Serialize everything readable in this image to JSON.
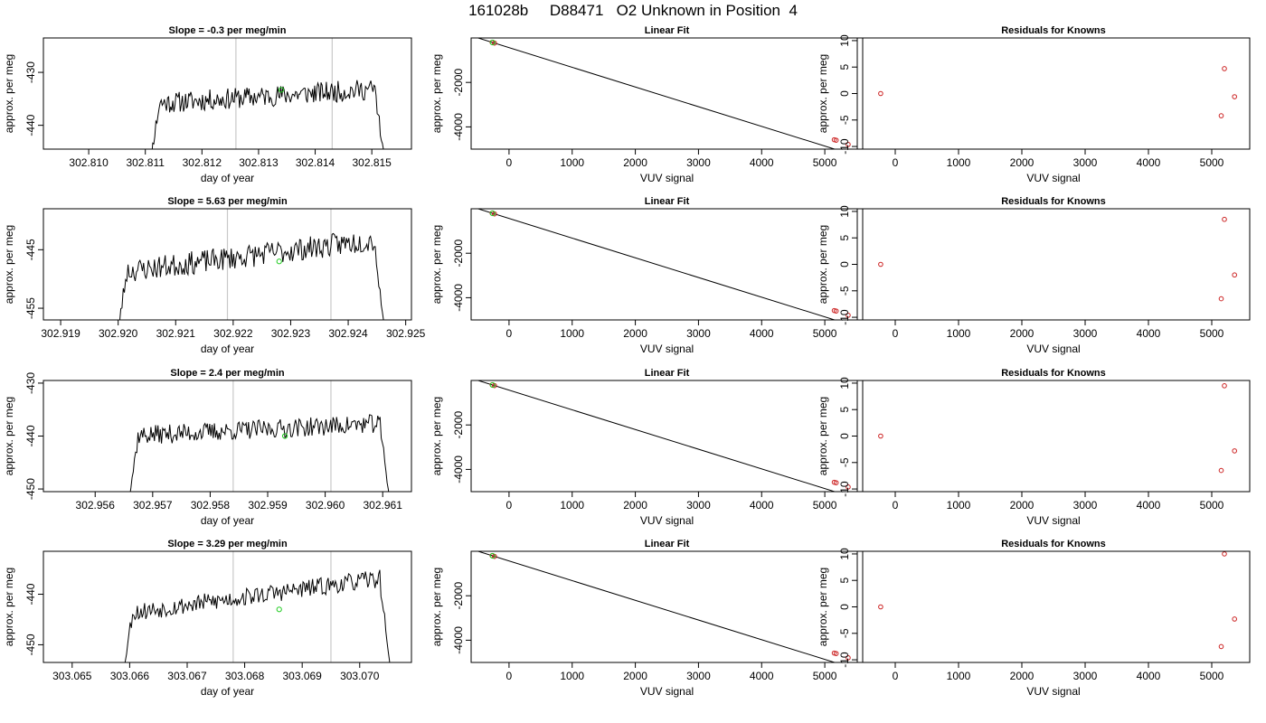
{
  "title": "161028b     D88471   O2 Unknown in Position  4",
  "chart_data": [
    {
      "type": "line",
      "panel": "timeseries",
      "row": 0,
      "title": "Slope =  -0.3  per meg/min",
      "xlabel": "day of year",
      "ylabel": "approx. per meg",
      "xlim": [
        302.8092,
        302.8157
      ],
      "ylim": [
        -444.5,
        -423.5
      ],
      "xticks": [
        302.81,
        302.811,
        302.812,
        302.813,
        302.814,
        302.815
      ],
      "xtick_labels": [
        "302.810",
        "302.811",
        "302.812",
        "302.813",
        "302.814",
        "302.815"
      ],
      "yticks": [
        -440,
        -430
      ],
      "ytick_labels": [
        "-440",
        "-430"
      ],
      "vlines": [
        302.8126,
        302.8143
      ],
      "series": [
        {
          "x_start": 302.811,
          "x_end": 302.8153,
          "level_start": -436.0,
          "level_end": -433.0,
          "noise": 2.0,
          "n": 230,
          "seed": 11
        }
      ],
      "marker": {
        "x": 302.8134,
        "y": -433.3
      }
    },
    {
      "type": "line",
      "panel": "timeseries",
      "row": 1,
      "title": "Slope =  5.63  per meg/min",
      "xlabel": "day of year",
      "ylabel": "approx. per meg",
      "xlim": [
        302.9187,
        302.9251
      ],
      "ylim": [
        -457.0,
        -438.0
      ],
      "xticks": [
        302.919,
        302.92,
        302.921,
        302.922,
        302.923,
        302.924,
        302.925
      ],
      "xtick_labels": [
        "302.919",
        "302.920",
        "302.921",
        "302.922",
        "302.923",
        "302.924",
        "302.925"
      ],
      "yticks": [
        -455,
        -445
      ],
      "ytick_labels": [
        "-455",
        "-445"
      ],
      "vlines": [
        302.9219,
        302.9237
      ],
      "series": [
        {
          "x_start": 302.9199,
          "x_end": 302.9247,
          "level_start": -449.0,
          "level_end": -443.0,
          "noise": 2.0,
          "n": 230,
          "seed": 23
        }
      ],
      "marker": {
        "x": 302.9228,
        "y": -447.0
      }
    },
    {
      "type": "line",
      "panel": "timeseries",
      "row": 2,
      "title": "Slope =  2.4  per meg/min",
      "xlabel": "day of year",
      "ylabel": "approx. per meg",
      "xlim": [
        302.9551,
        302.9615
      ],
      "ylim": [
        -450.5,
        -429.5
      ],
      "xticks": [
        302.956,
        302.957,
        302.958,
        302.959,
        302.96,
        302.961
      ],
      "xtick_labels": [
        "302.956",
        "302.957",
        "302.958",
        "302.959",
        "302.960",
        "302.961"
      ],
      "yticks": [
        -450,
        -440,
        -430
      ],
      "ytick_labels": [
        "-450",
        "-440",
        "-430"
      ],
      "vlines": [
        302.9584,
        302.9601
      ],
      "series": [
        {
          "x_start": 302.9565,
          "x_end": 302.9612,
          "level_start": -440.0,
          "level_end": -437.5,
          "noise": 1.8,
          "n": 230,
          "seed": 37
        }
      ],
      "marker": {
        "x": 302.9593,
        "y": -440.0
      }
    },
    {
      "type": "line",
      "panel": "timeseries",
      "row": 3,
      "title": "Slope =  3.29  per meg/min",
      "xlabel": "day of year",
      "ylabel": "approx. per meg",
      "xlim": [
        303.0645,
        303.0709
      ],
      "ylim": [
        -453.5,
        -431.5
      ],
      "xticks": [
        303.065,
        303.066,
        303.067,
        303.068,
        303.069,
        303.07
      ],
      "xtick_labels": [
        "303.065",
        "303.066",
        "303.067",
        "303.068",
        "303.069",
        "303.070"
      ],
      "yticks": [
        -450,
        -440
      ],
      "ytick_labels": [
        "-450",
        "-440"
      ],
      "vlines": [
        303.0678,
        303.0695
      ],
      "series": [
        {
          "x_start": 303.0658,
          "x_end": 303.0706,
          "level_start": -444.0,
          "level_end": -436.5,
          "noise": 1.8,
          "n": 230,
          "seed": 53
        }
      ],
      "marker": {
        "x": 303.0686,
        "y": -443.0
      }
    },
    {
      "type": "scatter",
      "panel": "fit",
      "row": 0,
      "title": "Linear Fit",
      "xlabel": "VUV signal",
      "ylabel": "approx. per meg",
      "xlim": [
        -600,
        5600
      ],
      "ylim": [
        -5000,
        0
      ],
      "xticks": [
        0,
        1000,
        2000,
        3000,
        4000,
        5000
      ],
      "xtick_labels": [
        "0",
        "1000",
        "2000",
        "3000",
        "4000",
        "5000"
      ],
      "yticks": [
        -4000,
        -2000
      ],
      "ytick_labels": [
        "-4000",
        "-2000"
      ],
      "line": {
        "slope": -0.8857,
        "intercept": -434
      },
      "points": [
        {
          "x": -230,
          "y": -230
        },
        {
          "x": -268,
          "y": -196
        },
        {
          "x": 5180,
          "y": -4600
        },
        {
          "x": 5150,
          "y": -4578
        },
        {
          "x": 5370,
          "y": -4790
        }
      ],
      "marker": {
        "x": -260,
        "y": -204
      }
    },
    {
      "type": "scatter",
      "panel": "fit",
      "row": 1,
      "title": "Linear Fit",
      "xlabel": "VUV signal",
      "ylabel": "approx. per meg",
      "xlim": [
        -600,
        5600
      ],
      "ylim": [
        -5000,
        0
      ],
      "xticks": [
        0,
        1000,
        2000,
        3000,
        4000,
        5000
      ],
      "xtick_labels": [
        "0",
        "1000",
        "2000",
        "3000",
        "4000",
        "5000"
      ],
      "yticks": [
        -4000,
        -2000
      ],
      "ytick_labels": [
        "-4000",
        "-2000"
      ],
      "line": {
        "slope": -0.8857,
        "intercept": -434
      },
      "points": [
        {
          "x": -230,
          "y": -230
        },
        {
          "x": -268,
          "y": -196
        },
        {
          "x": 5180,
          "y": -4600
        },
        {
          "x": 5150,
          "y": -4578
        },
        {
          "x": 5370,
          "y": -4790
        }
      ],
      "marker": {
        "x": -260,
        "y": -204
      }
    },
    {
      "type": "scatter",
      "panel": "fit",
      "row": 2,
      "title": "Linear Fit",
      "xlabel": "VUV signal",
      "ylabel": "approx. per meg",
      "xlim": [
        -600,
        5600
      ],
      "ylim": [
        -5000,
        0
      ],
      "xticks": [
        0,
        1000,
        2000,
        3000,
        4000,
        5000
      ],
      "xtick_labels": [
        "0",
        "1000",
        "2000",
        "3000",
        "4000",
        "5000"
      ],
      "yticks": [
        -4000,
        -2000
      ],
      "ytick_labels": [
        "-4000",
        "-2000"
      ],
      "line": {
        "slope": -0.8857,
        "intercept": -434
      },
      "points": [
        {
          "x": -230,
          "y": -230
        },
        {
          "x": -268,
          "y": -196
        },
        {
          "x": 5180,
          "y": -4600
        },
        {
          "x": 5150,
          "y": -4578
        },
        {
          "x": 5370,
          "y": -4790
        }
      ],
      "marker": {
        "x": -260,
        "y": -204
      }
    },
    {
      "type": "scatter",
      "panel": "fit",
      "row": 3,
      "title": "Linear Fit",
      "xlabel": "VUV signal",
      "ylabel": "approx. per meg",
      "xlim": [
        -600,
        5600
      ],
      "ylim": [
        -5000,
        0
      ],
      "xticks": [
        0,
        1000,
        2000,
        3000,
        4000,
        5000
      ],
      "xtick_labels": [
        "0",
        "1000",
        "2000",
        "3000",
        "4000",
        "5000"
      ],
      "yticks": [
        -4000,
        -2000
      ],
      "ytick_labels": [
        "-4000",
        "-2000"
      ],
      "line": {
        "slope": -0.8857,
        "intercept": -434
      },
      "points": [
        {
          "x": -230,
          "y": -230
        },
        {
          "x": -268,
          "y": -196
        },
        {
          "x": 5180,
          "y": -4600
        },
        {
          "x": 5150,
          "y": -4578
        },
        {
          "x": 5370,
          "y": -4790
        }
      ],
      "marker": {
        "x": -260,
        "y": -204
      }
    },
    {
      "type": "scatter",
      "panel": "residuals",
      "row": 0,
      "title": "Residuals for Knowns",
      "xlabel": "VUV signal",
      "ylabel": "approx. per meg",
      "xlim": [
        -600,
        5600
      ],
      "ylim": [
        -10.5,
        10.5
      ],
      "xticks": [
        0,
        1000,
        2000,
        3000,
        4000,
        5000
      ],
      "xtick_labels": [
        "0",
        "1000",
        "2000",
        "3000",
        "4000",
        "5000"
      ],
      "yticks": [
        -10,
        -5,
        0,
        5,
        10
      ],
      "ytick_labels": [
        "-10",
        "-5",
        "0",
        "5",
        "10"
      ],
      "points": [
        {
          "x": -230,
          "y": 0
        },
        {
          "x": 5150,
          "y": -4.2
        },
        {
          "x": 5200,
          "y": 4.7
        },
        {
          "x": 5360,
          "y": -0.6
        }
      ]
    },
    {
      "type": "scatter",
      "panel": "residuals",
      "row": 1,
      "title": "Residuals for Knowns",
      "xlabel": "VUV signal",
      "ylabel": "approx. per meg",
      "xlim": [
        -600,
        5600
      ],
      "ylim": [
        -10.5,
        10.5
      ],
      "xticks": [
        0,
        1000,
        2000,
        3000,
        4000,
        5000
      ],
      "xtick_labels": [
        "0",
        "1000",
        "2000",
        "3000",
        "4000",
        "5000"
      ],
      "yticks": [
        -10,
        -5,
        0,
        5,
        10
      ],
      "ytick_labels": [
        "-10",
        "-5",
        "0",
        "5",
        "10"
      ],
      "points": [
        {
          "x": -230,
          "y": 0
        },
        {
          "x": 5150,
          "y": -6.5
        },
        {
          "x": 5200,
          "y": 8.5
        },
        {
          "x": 5360,
          "y": -2.0
        }
      ]
    },
    {
      "type": "scatter",
      "panel": "residuals",
      "row": 2,
      "title": "Residuals for Knowns",
      "xlabel": "VUV signal",
      "ylabel": "approx. per meg",
      "xlim": [
        -600,
        5600
      ],
      "ylim": [
        -10.5,
        10.5
      ],
      "xticks": [
        0,
        1000,
        2000,
        3000,
        4000,
        5000
      ],
      "xtick_labels": [
        "0",
        "1000",
        "2000",
        "3000",
        "4000",
        "5000"
      ],
      "yticks": [
        -10,
        -5,
        0,
        5,
        10
      ],
      "ytick_labels": [
        "-10",
        "-5",
        "0",
        "5",
        "10"
      ],
      "points": [
        {
          "x": -230,
          "y": 0
        },
        {
          "x": 5150,
          "y": -6.5
        },
        {
          "x": 5200,
          "y": 9.5
        },
        {
          "x": 5360,
          "y": -2.8
        }
      ]
    },
    {
      "type": "scatter",
      "panel": "residuals",
      "row": 3,
      "title": "Residuals for Knowns",
      "xlabel": "VUV signal",
      "ylabel": "approx. per meg",
      "xlim": [
        -600,
        5600
      ],
      "ylim": [
        -10.5,
        10.5
      ],
      "xticks": [
        0,
        1000,
        2000,
        3000,
        4000,
        5000
      ],
      "xtick_labels": [
        "0",
        "1000",
        "2000",
        "3000",
        "4000",
        "5000"
      ],
      "yticks": [
        -10,
        -5,
        0,
        5,
        10
      ],
      "ytick_labels": [
        "-10",
        "-5",
        "0",
        "5",
        "10"
      ],
      "points": [
        {
          "x": -230,
          "y": 0
        },
        {
          "x": 5150,
          "y": -7.5
        },
        {
          "x": 5200,
          "y": 10.0
        },
        {
          "x": 5360,
          "y": -2.3
        }
      ]
    }
  ]
}
